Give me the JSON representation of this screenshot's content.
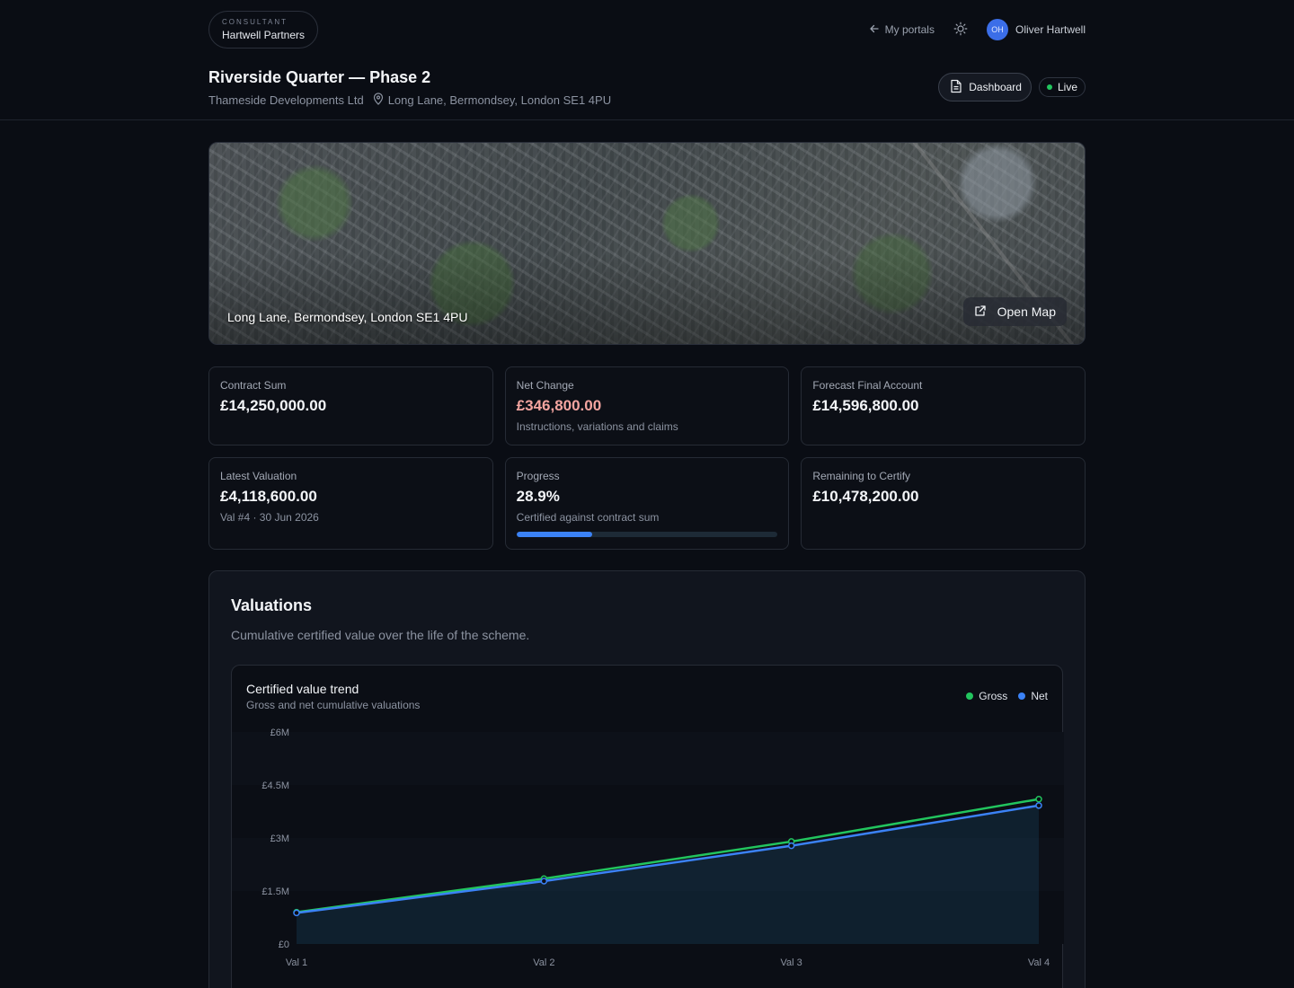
{
  "consultant": {
    "kicker": "CONSULTANT",
    "name": "Hartwell Partners"
  },
  "topnav": {
    "portals": "My portals",
    "user_initials": "OH",
    "user_name": "Oliver Hartwell"
  },
  "project": {
    "title": "Riverside Quarter — Phase 2",
    "client": "Thameside Developments Ltd",
    "address": "Long Lane, Bermondsey, London SE1 4PU",
    "dashboard_label": "Dashboard",
    "status": "Live",
    "status_color": "#22c55e"
  },
  "map": {
    "label": "Long Lane, Bermondsey, London SE1 4PU",
    "open_label": "Open Map"
  },
  "cards": {
    "contract_sum": {
      "label": "Contract Sum",
      "value": "£14,250,000.00"
    },
    "net_change": {
      "label": "Net Change",
      "value": "£346,800.00",
      "sub": "Instructions, variations and claims"
    },
    "forecast": {
      "label": "Forecast Final Account",
      "value": "£14,596,800.00"
    },
    "latest_valuation": {
      "label": "Latest Valuation",
      "value": "£4,118,600.00",
      "sub": "Val #4 · 30 Jun 2026"
    },
    "progress": {
      "label": "Progress",
      "value": "28.9%",
      "sub": "Certified against contract sum",
      "fraction": 0.289
    },
    "remaining": {
      "label": "Remaining to Certify",
      "value": "£10,478,200.00"
    }
  },
  "valuations": {
    "title": "Valuations",
    "description": "Cumulative certified value over the life of the scheme."
  },
  "chart_data": {
    "type": "line",
    "title": "Certified value trend",
    "subtitle": "Gross and net cumulative valuations",
    "categories": [
      "Val 1",
      "Val 2",
      "Val 3",
      "Val 4"
    ],
    "series": [
      {
        "name": "Gross",
        "color": "#22c55e",
        "values": [
          900000,
          1850000,
          2900000,
          4100000
        ]
      },
      {
        "name": "Net",
        "color": "#3b82f6",
        "values": [
          880000,
          1780000,
          2780000,
          3920000
        ]
      }
    ],
    "y_ticks": [
      "£0",
      "£1.5M",
      "£3M",
      "£4.5M",
      "£6M"
    ],
    "ylim": [
      0,
      6000000
    ],
    "legend": "top-right"
  }
}
